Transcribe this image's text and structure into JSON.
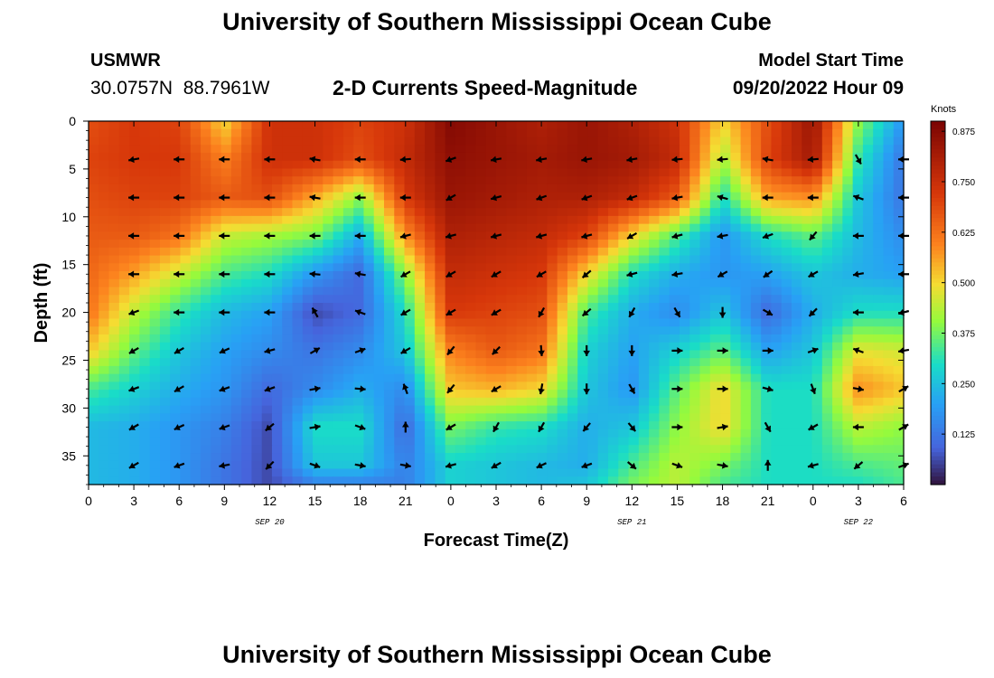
{
  "header": {
    "title": "University of Southern Mississippi Ocean Cube",
    "station": "USMWR",
    "coords": "30.0757N  88.7961W",
    "plot_title": "2-D Currents Speed-Magnitude",
    "model_label": "Model Start Time",
    "model_time": "09/20/2022 Hour 09",
    "footer_title": "University of Southern Mississippi Ocean Cube"
  },
  "chart_data": {
    "type": "heatmap",
    "title": "2-D Currents Speed-Magnitude",
    "xlabel": "Forecast Time(Z)",
    "ylabel": "Depth (ft)",
    "colorbar_label": "Knots",
    "xlim": [
      0,
      54
    ],
    "ylim": [
      0,
      38
    ],
    "y_inverted": true,
    "xticks": [
      0,
      3,
      6,
      9,
      12,
      15,
      18,
      21,
      24,
      27,
      30,
      33,
      36,
      39,
      42,
      45,
      48,
      51,
      54
    ],
    "xtick_labels": [
      "0",
      "3",
      "6",
      "9",
      "12",
      "15",
      "18",
      "21",
      "0",
      "3",
      "6",
      "9",
      "12",
      "15",
      "18",
      "21",
      "0",
      "3",
      "6"
    ],
    "yticks": [
      0,
      5,
      10,
      15,
      20,
      25,
      30,
      35
    ],
    "ytick_labels": [
      "0",
      "5",
      "10",
      "15",
      "20",
      "25",
      "30",
      "35"
    ],
    "date_labels": [
      {
        "hour": 12,
        "text": "SEP 20"
      },
      {
        "hour": 36,
        "text": "SEP 21"
      },
      {
        "hour": 51,
        "text": "SEP 22"
      }
    ],
    "colorbar_range": [
      0,
      0.9
    ],
    "colorbar_ticks": [
      0.125,
      0.25,
      0.375,
      0.5,
      0.625,
      0.75,
      0.875
    ],
    "colorbar_tick_labels": [
      "0.125",
      "0.250",
      "0.375",
      "0.500",
      "0.625",
      "0.750",
      "0.875"
    ],
    "grid_hours": [
      0,
      3,
      6,
      9,
      12,
      15,
      18,
      21,
      24,
      27,
      30,
      33,
      36,
      39,
      42,
      45,
      48,
      51,
      54
    ],
    "grid_depths": [
      0,
      4,
      8,
      12,
      16,
      20,
      24,
      28,
      32,
      36,
      38
    ],
    "speed_knots": [
      [
        0.68,
        0.72,
        0.7,
        0.5,
        0.74,
        0.74,
        0.7,
        0.74,
        0.88,
        0.84,
        0.8,
        0.84,
        0.8,
        0.74,
        0.5,
        0.68,
        0.84,
        0.4,
        0.18
      ],
      [
        0.7,
        0.72,
        0.72,
        0.6,
        0.74,
        0.74,
        0.68,
        0.76,
        0.86,
        0.84,
        0.82,
        0.84,
        0.82,
        0.76,
        0.42,
        0.7,
        0.82,
        0.32,
        0.12
      ],
      [
        0.68,
        0.7,
        0.7,
        0.66,
        0.68,
        0.55,
        0.4,
        0.72,
        0.84,
        0.82,
        0.8,
        0.8,
        0.76,
        0.66,
        0.3,
        0.56,
        0.58,
        0.26,
        0.12
      ],
      [
        0.66,
        0.66,
        0.62,
        0.45,
        0.42,
        0.38,
        0.22,
        0.58,
        0.8,
        0.78,
        0.76,
        0.7,
        0.5,
        0.34,
        0.18,
        0.3,
        0.36,
        0.24,
        0.16
      ],
      [
        0.64,
        0.56,
        0.45,
        0.34,
        0.3,
        0.18,
        0.1,
        0.4,
        0.76,
        0.74,
        0.72,
        0.5,
        0.3,
        0.22,
        0.18,
        0.2,
        0.26,
        0.22,
        0.2
      ],
      [
        0.62,
        0.44,
        0.32,
        0.24,
        0.2,
        0.06,
        0.1,
        0.3,
        0.72,
        0.7,
        0.68,
        0.34,
        0.22,
        0.16,
        0.26,
        0.1,
        0.22,
        0.3,
        0.3
      ],
      [
        0.52,
        0.36,
        0.26,
        0.2,
        0.16,
        0.12,
        0.16,
        0.26,
        0.6,
        0.66,
        0.62,
        0.28,
        0.2,
        0.28,
        0.36,
        0.2,
        0.26,
        0.48,
        0.46
      ],
      [
        0.34,
        0.28,
        0.22,
        0.18,
        0.1,
        0.16,
        0.22,
        0.16,
        0.52,
        0.54,
        0.5,
        0.26,
        0.18,
        0.36,
        0.5,
        0.3,
        0.3,
        0.58,
        0.52
      ],
      [
        0.24,
        0.22,
        0.18,
        0.14,
        0.06,
        0.3,
        0.3,
        0.1,
        0.38,
        0.32,
        0.3,
        0.22,
        0.26,
        0.4,
        0.5,
        0.3,
        0.3,
        0.44,
        0.4
      ],
      [
        0.24,
        0.22,
        0.18,
        0.12,
        0.06,
        0.26,
        0.26,
        0.14,
        0.28,
        0.26,
        0.24,
        0.22,
        0.34,
        0.44,
        0.38,
        0.3,
        0.3,
        0.34,
        0.36
      ],
      [
        0.24,
        0.22,
        0.18,
        0.12,
        0.06,
        0.14,
        0.14,
        0.14,
        0.28,
        0.26,
        0.24,
        0.26,
        0.38,
        0.44,
        0.34,
        0.3,
        0.3,
        0.3,
        0.34
      ]
    ],
    "vectors": {
      "hours": [
        3,
        6,
        9,
        12,
        15,
        18,
        21,
        24,
        27,
        30,
        33,
        36,
        39,
        42,
        45,
        48,
        51,
        54
      ],
      "depths": [
        4,
        8,
        12,
        16,
        20,
        24,
        28,
        32,
        36
      ],
      "directions_deg": [
        [
          170,
          180,
          180,
          180,
          190,
          180,
          175,
          160,
          170,
          170,
          170,
          170,
          175,
          175,
          190,
          175,
          60,
          180
        ],
        [
          180,
          180,
          180,
          180,
          190,
          180,
          180,
          150,
          165,
          160,
          160,
          160,
          170,
          195,
          180,
          180,
          200,
          180
        ],
        [
          180,
          180,
          180,
          180,
          180,
          180,
          165,
          165,
          165,
          165,
          165,
          150,
          165,
          170,
          160,
          130,
          180,
          180
        ],
        [
          180,
          180,
          180,
          180,
          185,
          190,
          150,
          150,
          150,
          150,
          140,
          165,
          170,
          150,
          145,
          150,
          170,
          180
        ],
        [
          160,
          180,
          180,
          180,
          240,
          200,
          150,
          150,
          150,
          120,
          140,
          120,
          60,
          90,
          30,
          135,
          180,
          165
        ],
        [
          150,
          150,
          155,
          165,
          330,
          340,
          150,
          130,
          135,
          85,
          90,
          90,
          0,
          0,
          0,
          340,
          200,
          170
        ],
        [
          160,
          150,
          160,
          160,
          350,
          5,
          250,
          130,
          150,
          100,
          90,
          60,
          0,
          0,
          15,
          70,
          10,
          330
        ],
        [
          150,
          155,
          160,
          140,
          350,
          20,
          270,
          150,
          120,
          120,
          130,
          50,
          0,
          350,
          60,
          150,
          180,
          330
        ],
        [
          150,
          160,
          170,
          135,
          20,
          10,
          10,
          165,
          150,
          155,
          160,
          40,
          20,
          10,
          270,
          165,
          140,
          340
        ]
      ]
    }
  }
}
